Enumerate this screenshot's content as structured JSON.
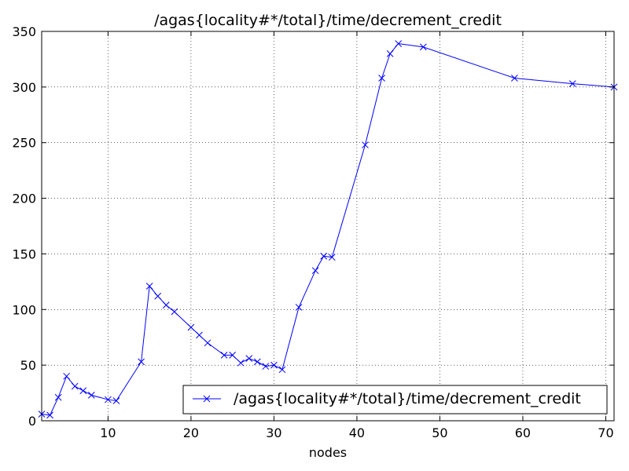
{
  "chart_data": {
    "type": "line",
    "title": "/agas{locality#*/total}/time/decrement_credit",
    "xlabel": "nodes",
    "ylabel": "",
    "xlim": [
      2,
      71
    ],
    "ylim": [
      0,
      350
    ],
    "xticks": [
      10,
      20,
      30,
      40,
      50,
      60,
      70
    ],
    "yticks": [
      0,
      50,
      100,
      150,
      200,
      250,
      300,
      350
    ],
    "grid": true,
    "legend_position": "lower-right",
    "series": [
      {
        "name": "/agas{locality#*/total}/time/decrement_credit",
        "color": "#0000ff",
        "marker": "x",
        "x": [
          2,
          3,
          4,
          5,
          6,
          7,
          8,
          10,
          11,
          14,
          15,
          16,
          17,
          18,
          20,
          21,
          22,
          24,
          25,
          26,
          27,
          28,
          29,
          30,
          31,
          33,
          35,
          36,
          37,
          41,
          43,
          44,
          45,
          48,
          59,
          66,
          71
        ],
        "y": [
          6,
          5,
          21,
          40,
          31,
          27,
          23,
          19,
          18,
          53,
          121,
          112,
          104,
          98,
          84,
          77,
          70,
          59,
          59,
          52,
          56,
          53,
          49,
          50,
          46,
          102,
          135,
          148,
          147,
          248,
          308,
          330,
          339,
          336,
          308,
          303,
          300
        ]
      }
    ]
  }
}
